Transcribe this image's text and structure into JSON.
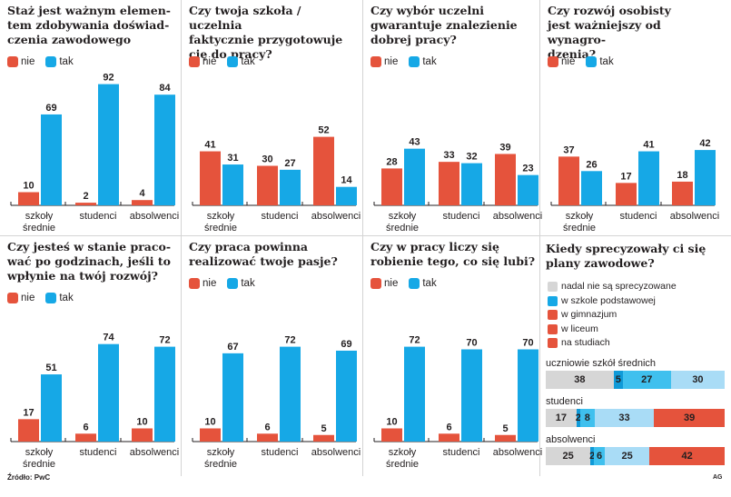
{
  "colors": {
    "nie": "#e5533c",
    "tak": "#16a8e6",
    "grey": "#d6d6d6",
    "dark_blue": "#0f9ad8",
    "mid_blue": "#3fc0ee",
    "light_blue": "#a9dcf6",
    "red": "#e5533c"
  },
  "legend_labels": {
    "nie": "nie",
    "tak": "tak"
  },
  "categories": [
    "szkoły\nśrednie",
    "studenci",
    "absolwenci"
  ],
  "footer": {
    "source": "Źródło: PwC",
    "credit": "AG"
  },
  "chart_data": [
    {
      "type": "bar",
      "title": "Staż jest ważnym elementem zdobywania doświadczenia zawodowego",
      "title_lines": [
        "Staż jest ważnym elemen-",
        "tem zdobywania doświad-",
        "czenia zawodowego"
      ],
      "categories": [
        "szkoły średnie",
        "studenci",
        "absolwenci"
      ],
      "series": [
        {
          "name": "nie",
          "values": [
            10,
            2,
            4
          ]
        },
        {
          "name": "tak",
          "values": [
            69,
            92,
            84
          ]
        }
      ],
      "ylim": [
        0,
        100
      ],
      "legend": "top-left"
    },
    {
      "type": "bar",
      "title": "Czy twoja szkoła / uczelnia faktycznie przygotowuje cię do pracy?",
      "title_lines": [
        "Czy twoja szkoła / uczelnia",
        "faktycznie przygotowuje",
        "cię do pracy?"
      ],
      "categories": [
        "szkoły średnie",
        "studenci",
        "absolwenci"
      ],
      "series": [
        {
          "name": "nie",
          "values": [
            41,
            30,
            52
          ]
        },
        {
          "name": "tak",
          "values": [
            31,
            27,
            14
          ]
        }
      ],
      "ylim": [
        0,
        100
      ],
      "legend": "top-left"
    },
    {
      "type": "bar",
      "title": "Czy wybór uczelni gwarantuje znalezienie dobrej pracy?",
      "title_lines": [
        "Czy wybór uczelni",
        "gwarantuje znalezienie",
        "dobrej pracy?"
      ],
      "categories": [
        "szkoły średnie",
        "studenci",
        "absolwenci"
      ],
      "series": [
        {
          "name": "nie",
          "values": [
            28,
            33,
            39
          ]
        },
        {
          "name": "tak",
          "values": [
            43,
            32,
            23
          ]
        }
      ],
      "ylim": [
        0,
        100
      ],
      "legend": "top-left"
    },
    {
      "type": "bar",
      "title": "Czy rozwój osobisty jest ważniejszy od wynagrodzenia?",
      "title_lines": [
        "Czy rozwój osobisty",
        "jest ważniejszy od wynagro-",
        "dzenia?"
      ],
      "categories": [
        "szkoły średnie",
        "studenci",
        "absolwenci"
      ],
      "series": [
        {
          "name": "nie",
          "values": [
            37,
            17,
            18
          ]
        },
        {
          "name": "tak",
          "values": [
            26,
            41,
            42
          ]
        }
      ],
      "ylim": [
        0,
        100
      ],
      "legend": "top-left"
    },
    {
      "type": "bar",
      "title": "Czy jesteś w stanie pracować po godzinach, jeśli to wpłynie na twój rozwój?",
      "title_lines": [
        "Czy jesteś w stanie praco-",
        "wać po godzinach, jeśli to",
        "wpłynie na twój rozwój?"
      ],
      "categories": [
        "szkoły średnie",
        "studenci",
        "absolwenci"
      ],
      "series": [
        {
          "name": "nie",
          "values": [
            17,
            6,
            10
          ]
        },
        {
          "name": "tak",
          "values": [
            51,
            74,
            72
          ]
        }
      ],
      "ylim": [
        0,
        100
      ],
      "legend": "top-left"
    },
    {
      "type": "bar",
      "title": "Czy praca powinna realizować twoje pasje?",
      "title_lines": [
        "Czy praca powinna",
        "realizować twoje pasje?"
      ],
      "categories": [
        "szkoły średnie",
        "studenci",
        "absolwenci"
      ],
      "series": [
        {
          "name": "nie",
          "values": [
            10,
            6,
            5
          ]
        },
        {
          "name": "tak",
          "values": [
            67,
            72,
            69
          ]
        }
      ],
      "ylim": [
        0,
        100
      ],
      "legend": "top-left"
    },
    {
      "type": "bar",
      "title": "Czy w pracy liczy się robienie tego, co się lubi?",
      "title_lines": [
        "Czy w pracy liczy się",
        "robienie tego, co się lubi?"
      ],
      "categories": [
        "szkoły średnie",
        "studenci",
        "absolwenci"
      ],
      "series": [
        {
          "name": "nie",
          "values": [
            10,
            6,
            5
          ]
        },
        {
          "name": "tak",
          "values": [
            72,
            70,
            70
          ]
        }
      ],
      "ylim": [
        0,
        100
      ],
      "legend": "top-left"
    },
    {
      "type": "bar",
      "stacked": true,
      "orientation": "horizontal",
      "title": "Kiedy sprecyzowały ci się plany zawodowe?",
      "title_lines": [
        "Kiedy sprecyzowały ci się",
        "plany zawodowe?"
      ],
      "legend_entries": [
        "nadal nie są sprecyzowane",
        "w szkole podstawowej",
        "w gimnazjum",
        "w liceum",
        "na studiach"
      ],
      "legend_colors": [
        "#d6d6d6",
        "#16a8e6",
        "#e5533c",
        "#e5533c",
        "#e5533c"
      ],
      "categories": [
        "uczniowie szkół średnich",
        "studenci",
        "absolwenci"
      ],
      "series": [
        {
          "name": "nadal nie są sprecyzowane",
          "values": [
            38,
            17,
            25
          ]
        },
        {
          "name": "w szkole podstawowej",
          "values": [
            5,
            2,
            2
          ]
        },
        {
          "name": "w gimnazjum",
          "values": [
            27,
            8,
            6
          ]
        },
        {
          "name": "w liceum",
          "values": [
            30,
            33,
            25
          ]
        },
        {
          "name": "na studiach",
          "values": [
            0,
            39,
            42
          ]
        }
      ],
      "segment_colors": [
        "#d6d6d6",
        "#0f9ad8",
        "#3fc0ee",
        "#a9dcf6",
        "#e5533c"
      ],
      "legend": "top-left"
    }
  ]
}
